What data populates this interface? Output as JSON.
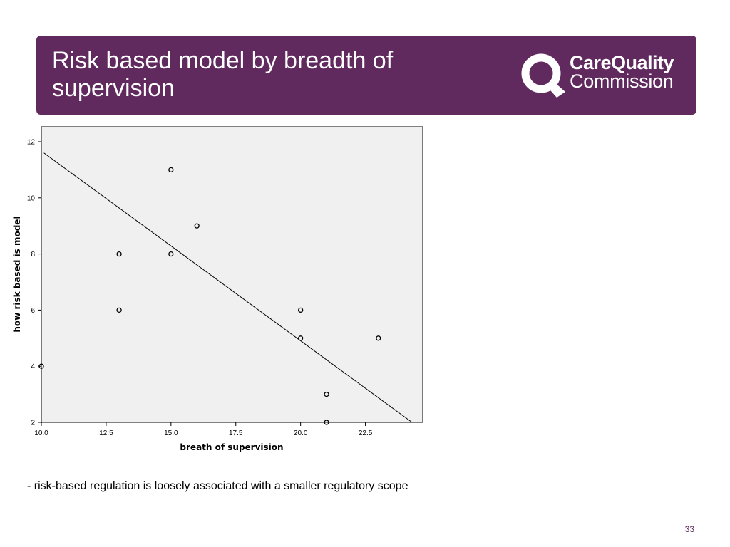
{
  "slide": {
    "title": "Risk based model by breadth of supervision",
    "caption": "- risk-based regulation is loosely associated with a smaller regulatory scope",
    "page_number": "33"
  },
  "logo": {
    "line1": "CareQuality",
    "line2": "Commission",
    "icon": "cqc-q-logo-icon"
  },
  "colors": {
    "brand": "#612a5f",
    "plot_background": "#f0f0f0"
  },
  "chart_data": {
    "type": "scatter",
    "xlabel": "breath of supervision",
    "ylabel": "how risk based is model",
    "xlim": [
      10.0,
      24.8
    ],
    "ylim": [
      2,
      12.5
    ],
    "x_ticks": [
      "10.0",
      "12.5",
      "15.0",
      "17.5",
      "20.0",
      "22.5"
    ],
    "y_ticks": [
      "2",
      "4",
      "6",
      "8",
      "10",
      "12"
    ],
    "grid": false,
    "points": [
      {
        "x": 10,
        "y": 4
      },
      {
        "x": 13,
        "y": 8
      },
      {
        "x": 13,
        "y": 6
      },
      {
        "x": 15,
        "y": 11
      },
      {
        "x": 15,
        "y": 8
      },
      {
        "x": 16,
        "y": 9
      },
      {
        "x": 20,
        "y": 6
      },
      {
        "x": 20,
        "y": 5
      },
      {
        "x": 21,
        "y": 3
      },
      {
        "x": 21,
        "y": 2
      },
      {
        "x": 23,
        "y": 5
      }
    ],
    "fit_line": {
      "x": [
        10.1,
        24.3
      ],
      "y": [
        11.6,
        2.0
      ]
    }
  }
}
